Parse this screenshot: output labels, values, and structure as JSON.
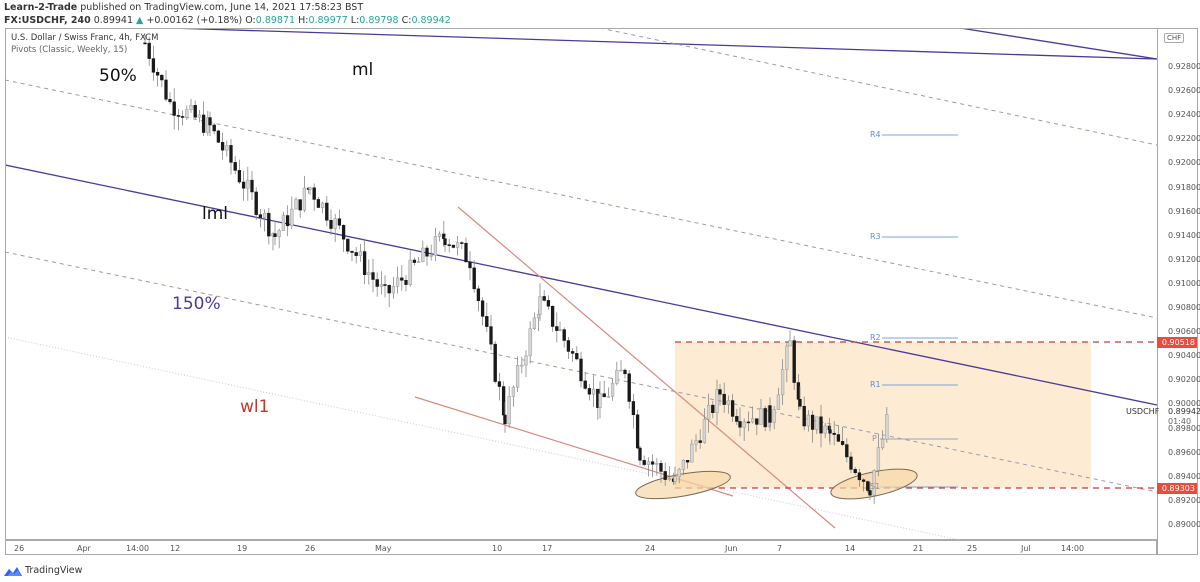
{
  "header": {
    "publisher": "Learn-2-Trade",
    "published_text": "published on TradingView.com, June 14, 2021 17:58:23 BST",
    "symbol": "FX:USDCHF, 240",
    "last": "0.89941",
    "change": "+0.00162 (+0.18%)",
    "open_label": "O:",
    "open": "0.89871",
    "high_label": "H:",
    "high": "0.89977",
    "low_label": "L:",
    "low": "0.89798",
    "close_label": "C:",
    "close": "0.89942"
  },
  "legend": {
    "title": "U.S. Dollar / Swiss Franc, 4h, FXCM",
    "indicator": "Pivots (Classic, Weekly, 15)"
  },
  "annotations": {
    "pct50": "50%",
    "ml": "ml",
    "lml": "lml",
    "pct150": "150%",
    "wl1": "wl1"
  },
  "pivots": {
    "r4": "R4",
    "r3": "R3",
    "r2": "R2",
    "r1": "R1",
    "p": "P",
    "s1": "S1"
  },
  "price_axis": {
    "currency": "CHF",
    "ticks": [
      "0.92800",
      "0.92600",
      "0.92400",
      "0.92200",
      "0.92000",
      "0.91800",
      "0.91600",
      "0.91400",
      "0.91200",
      "0.91000",
      "0.90800",
      "0.90600",
      "0.90400",
      "0.90200",
      "0.90000",
      "0.89800",
      "0.89600",
      "0.89400",
      "0.89200",
      "0.89000"
    ],
    "badge_resistance": "0.90518",
    "badge_support": "0.89303",
    "current_symbol": "USDCHF",
    "current_price": "0.89942",
    "countdown": "01:40"
  },
  "time_axis": {
    "ticks": [
      "26",
      "Apr",
      "14:00",
      "12",
      "19",
      "26",
      "May",
      "10",
      "17",
      "24",
      "Jun",
      "7",
      "14",
      "21",
      "25",
      "Jul",
      "14:00"
    ]
  },
  "footer": {
    "brand": "TradingView"
  },
  "colors": {
    "bull_candle": "#d6d6d6",
    "bear_candle": "#1a1a1a",
    "pitchfork": "#4a3a9a",
    "trendline": "#d98a7e",
    "range_box": "#fdebd3",
    "level_dash": "#cc3b3b",
    "pivot_line": "#7aa6dd"
  },
  "chart_data": {
    "type": "candlestick",
    "title": "U.S. Dollar / Swiss Franc, 4h, FXCM",
    "xlabel": "",
    "ylabel": "CHF",
    "ylim": [
      0.889,
      0.93
    ],
    "x_ticks": [
      "26",
      "Apr",
      "14:00",
      "12",
      "19",
      "26",
      "May",
      "10",
      "17",
      "24",
      "Jun",
      "7",
      "14",
      "21",
      "25",
      "Jul",
      "14:00"
    ],
    "levels": {
      "resistance": 0.90518,
      "support": 0.89303,
      "current": 0.89942
    },
    "pivots_weekly": {
      "R4": 0.9224,
      "R3": 0.9139,
      "R2": 0.9055,
      "R1": 0.9016,
      "P": 0.8972,
      "S1": 0.8932
    },
    "approx_close_path": [
      {
        "x": "late Mar",
        "y": 0.93
      },
      {
        "x": "Apr 5",
        "y": 0.925
      },
      {
        "x": "Apr 12",
        "y": 0.923
      },
      {
        "x": "Apr 16",
        "y": 0.914
      },
      {
        "x": "Apr 22",
        "y": 0.918
      },
      {
        "x": "Apr 29",
        "y": 0.909
      },
      {
        "x": "May 5",
        "y": 0.914
      },
      {
        "x": "May 10",
        "y": 0.899
      },
      {
        "x": "May 13",
        "y": 0.9085
      },
      {
        "x": "May 20",
        "y": 0.9
      },
      {
        "x": "May 25",
        "y": 0.8935
      },
      {
        "x": "Jun 1",
        "y": 0.901
      },
      {
        "x": "Jun 4",
        "y": 0.905
      },
      {
        "x": "Jun 7",
        "y": 0.8975
      },
      {
        "x": "Jun 11",
        "y": 0.8932
      },
      {
        "x": "Jun 14",
        "y": 0.8994
      }
    ],
    "legend": [
      "Pivots (Classic, Weekly, 15)"
    ],
    "annotations": [
      "50%",
      "ml",
      "lml",
      "150%",
      "wl1"
    ]
  }
}
